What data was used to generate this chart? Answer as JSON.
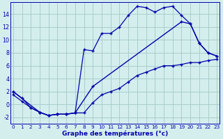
{
  "xlabel": "Graphe des températures (°c)",
  "background_color": "#d4eeee",
  "grid_color": "#aacccc",
  "line_color": "#0000aa",
  "x_ticks": [
    0,
    1,
    2,
    3,
    4,
    5,
    6,
    7,
    8,
    9,
    10,
    11,
    12,
    13,
    14,
    15,
    16,
    17,
    18,
    19,
    20,
    21,
    22,
    23
  ],
  "y_ticks": [
    -2,
    0,
    2,
    4,
    6,
    8,
    10,
    12,
    14
  ],
  "xlim": [
    -0.3,
    23.3
  ],
  "ylim": [
    -3.0,
    15.8
  ],
  "line1_x": [
    0,
    1,
    2,
    3,
    4,
    5,
    6,
    7,
    8,
    9,
    10,
    11,
    12,
    13,
    14,
    15,
    16,
    17,
    18,
    19,
    20,
    21,
    22,
    23
  ],
  "line1_y": [
    2.0,
    1.0,
    -0.5,
    -1.2,
    -1.7,
    -1.5,
    -1.5,
    -1.3,
    8.5,
    8.3,
    11.0,
    11.0,
    12.0,
    13.8,
    15.2,
    15.0,
    14.3,
    15.0,
    15.2,
    13.8,
    12.5,
    9.5,
    8.0,
    7.5
  ],
  "line2_x": [
    0,
    1,
    2,
    3,
    4,
    5,
    6,
    7,
    8,
    9,
    10,
    11,
    12,
    13,
    14,
    15,
    16,
    17,
    18,
    19,
    20,
    21,
    22,
    23
  ],
  "line2_y": [
    1.5,
    0.5,
    -0.5,
    -1.2,
    -1.7,
    -1.5,
    -1.5,
    -1.3,
    -1.3,
    0.3,
    1.5,
    2.0,
    2.5,
    3.5,
    4.5,
    5.0,
    5.5,
    6.0,
    6.0,
    6.2,
    6.5,
    6.5,
    6.8,
    7.0
  ],
  "line3_x": [
    0,
    3,
    4,
    5,
    6,
    7,
    9,
    19,
    20,
    21,
    22,
    23
  ],
  "line3_y": [
    2.0,
    -1.2,
    -1.7,
    -1.5,
    -1.5,
    -1.3,
    2.8,
    12.8,
    12.5,
    9.5,
    8.0,
    7.5
  ]
}
